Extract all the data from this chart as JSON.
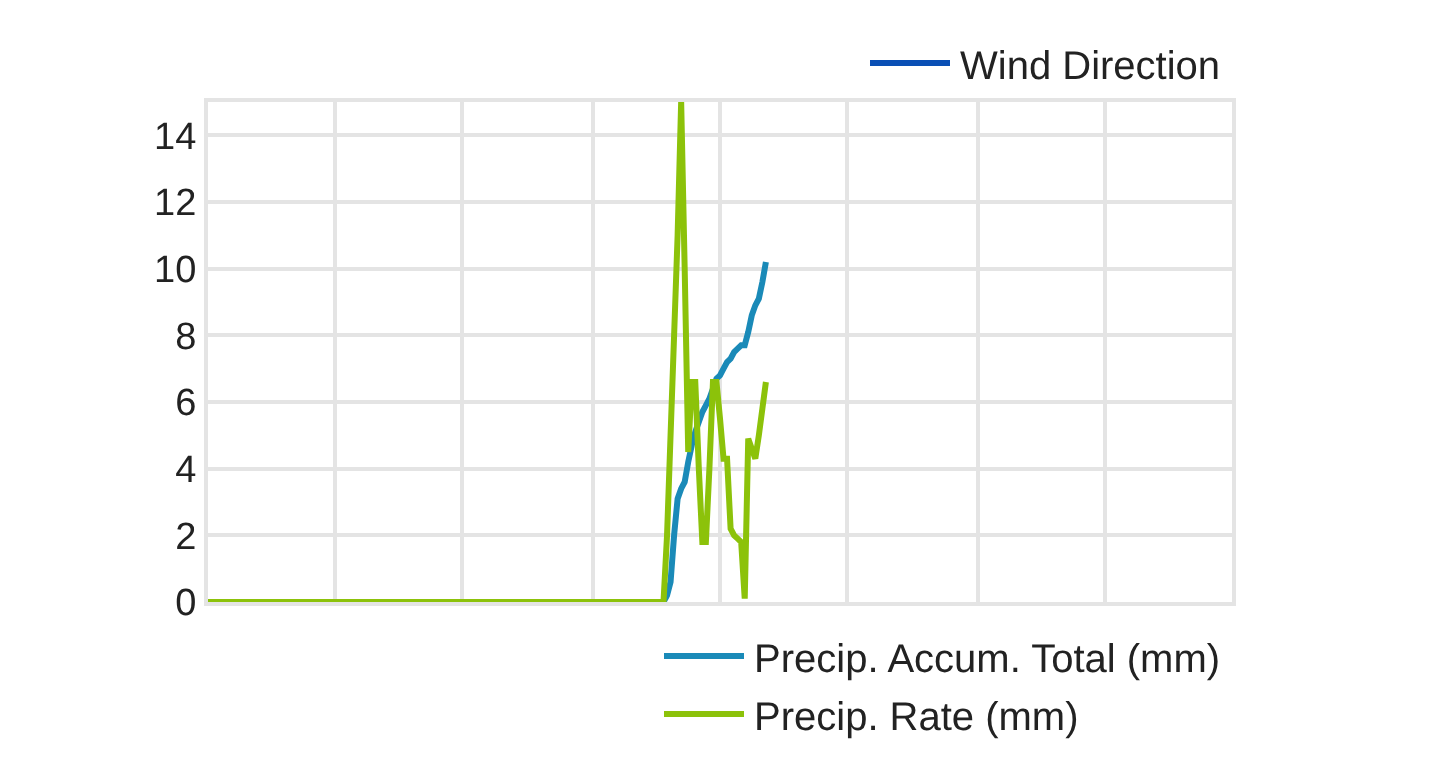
{
  "chart_data": {
    "type": "line",
    "categories": [
      null,
      null,
      null,
      null,
      null,
      null,
      null,
      null,
      null,
      null,
      null,
      null,
      null,
      null,
      null,
      null,
      null,
      null,
      null,
      null,
      null,
      null,
      null,
      null,
      null,
      null,
      null,
      null,
      null,
      null,
      null,
      null,
      null,
      null,
      null,
      null,
      null,
      null,
      null,
      null,
      null,
      null,
      null,
      null,
      null,
      null,
      null,
      null,
      null,
      null,
      null,
      null,
      null,
      null,
      null,
      null,
      null,
      null,
      null,
      null,
      null,
      null,
      null,
      null,
      null,
      null,
      null,
      null,
      null,
      null,
      null,
      null,
      null,
      null,
      null,
      null,
      null,
      null,
      null,
      null,
      null,
      null,
      null,
      null,
      null,
      null,
      null,
      null,
      null,
      null,
      null,
      null,
      null,
      null,
      null,
      null,
      null,
      null,
      null,
      null,
      null,
      null,
      null,
      null,
      null,
      null,
      null,
      null,
      null,
      null,
      null,
      null,
      null,
      null,
      null,
      null,
      null,
      null,
      null,
      null,
      null,
      null,
      null,
      null,
      null,
      null,
      null,
      null,
      null,
      null,
      null,
      null,
      null,
      null,
      null,
      null,
      null,
      null,
      null,
      null,
      null,
      null,
      null,
      null,
      null,
      null,
      null,
      null,
      null,
      null,
      null,
      null,
      null,
      null,
      null,
      null,
      null,
      null,
      null,
      null,
      null,
      null,
      null,
      null,
      null,
      null,
      null,
      null,
      null,
      null,
      null,
      null,
      null,
      null,
      null,
      null,
      null,
      null,
      null,
      null,
      null,
      null,
      null,
      null,
      null,
      null,
      null,
      null,
      null,
      null,
      null,
      null,
      null,
      null,
      null,
      null,
      null,
      null,
      null,
      null,
      null,
      null,
      null,
      null,
      null,
      null,
      null,
      null,
      null,
      null,
      null,
      null,
      null,
      null,
      null,
      null,
      null,
      null,
      null,
      null,
      null,
      null,
      null,
      null,
      null,
      null,
      null,
      null,
      null,
      null,
      null,
      null,
      null,
      null,
      null,
      null,
      null,
      null,
      null,
      null,
      null,
      null,
      null,
      null,
      null,
      null,
      null,
      null,
      null,
      null,
      null,
      null,
      null,
      null,
      null,
      null,
      null,
      null,
      null,
      null,
      null,
      null,
      null,
      null,
      null,
      null,
      null,
      null,
      null,
      null,
      null,
      null,
      null,
      null,
      null,
      null,
      null,
      null,
      null,
      null,
      null,
      null,
      null,
      null,
      null,
      null,
      null,
      null,
      null,
      null,
      null
    ],
    "series": [
      {
        "name": "Wind Direction",
        "color": "#0a4fb5",
        "values": [
          null,
          null,
          null,
          null,
          null,
          null,
          null,
          null,
          null,
          null,
          null,
          null,
          null,
          null,
          null,
          null,
          null,
          null,
          null,
          null,
          null,
          null,
          null,
          null,
          null,
          null,
          null,
          null,
          null,
          null,
          null,
          null,
          null,
          null,
          null,
          null,
          null,
          null,
          null,
          null,
          null,
          null,
          null,
          null,
          null,
          null,
          null,
          null,
          null,
          null,
          null,
          null,
          null,
          null,
          null,
          null,
          null,
          null,
          null,
          null,
          null,
          null,
          null,
          null,
          null,
          null,
          null,
          null,
          null,
          null,
          null,
          null,
          null,
          null,
          null,
          null,
          null,
          null,
          null,
          null,
          null,
          null,
          null,
          null,
          null,
          null,
          null,
          null,
          null,
          null,
          null,
          null,
          null,
          null,
          null,
          null,
          null,
          null,
          null,
          null,
          null,
          null,
          null,
          null,
          null,
          null,
          null,
          null,
          null,
          null,
          null,
          null,
          null,
          null,
          null,
          null,
          null,
          null,
          null,
          null,
          null,
          null,
          null,
          null,
          null,
          null,
          null,
          null,
          null,
          null,
          null,
          null,
          null,
          null,
          null,
          null,
          null,
          null,
          null,
          null,
          null,
          null,
          null,
          null,
          null,
          null,
          null,
          null,
          null,
          null,
          null,
          null,
          null,
          null,
          null,
          null,
          null,
          null,
          null,
          null,
          null,
          null,
          null,
          null,
          null,
          null,
          null,
          null,
          null,
          null,
          null,
          null,
          null,
          null,
          null,
          null,
          null,
          null,
          null,
          null,
          null,
          null,
          null,
          null,
          null,
          null,
          null,
          null,
          null,
          null,
          null,
          null,
          null,
          null,
          null,
          null,
          null,
          null,
          null,
          null,
          null,
          null,
          null,
          null,
          null,
          null,
          null,
          null,
          null,
          null,
          null,
          null,
          null,
          null,
          null,
          null,
          null,
          null,
          null,
          null,
          null,
          null,
          null,
          null,
          null,
          null,
          null,
          null,
          null,
          null,
          null,
          null,
          null,
          null,
          null,
          null,
          null,
          null,
          null,
          null,
          null,
          null,
          null,
          null,
          null,
          null,
          null,
          null,
          null,
          null,
          null,
          null,
          null,
          null,
          null,
          null,
          null,
          null,
          null,
          null,
          null,
          null,
          null,
          null,
          null,
          null,
          null,
          null,
          null,
          null,
          null,
          null,
          null,
          null,
          null,
          null,
          null,
          null,
          null,
          null,
          null,
          null,
          null,
          null,
          null,
          null,
          null,
          null,
          null,
          null,
          null
        ]
      },
      {
        "name": "Precip. Accum. Total (mm)",
        "color": "#1a8ab8",
        "values": [
          null,
          null,
          null,
          null,
          null,
          null,
          null,
          null,
          null,
          null,
          null,
          null,
          null,
          null,
          null,
          null,
          null,
          null,
          null,
          null,
          null,
          null,
          null,
          null,
          null,
          null,
          null,
          null,
          null,
          null,
          null,
          null,
          null,
          null,
          null,
          null,
          null,
          null,
          null,
          null,
          null,
          null,
          null,
          null,
          null,
          null,
          null,
          null,
          null,
          null,
          null,
          null,
          null,
          null,
          null,
          null,
          null,
          null,
          null,
          null,
          null,
          null,
          null,
          null,
          null,
          null,
          null,
          null,
          null,
          null,
          null,
          null,
          null,
          null,
          null,
          null,
          null,
          null,
          null,
          null,
          null,
          null,
          null,
          null,
          null,
          null,
          null,
          null,
          null,
          null,
          null,
          null,
          null,
          null,
          null,
          null,
          null,
          null,
          null,
          null,
          null,
          null,
          null,
          null,
          null,
          null,
          null,
          null,
          null,
          null,
          null,
          null,
          null,
          null,
          null,
          null,
          null,
          null,
          null,
          null,
          null,
          null,
          null,
          null,
          null,
          null,
          null,
          null,
          null,
          0,
          0.2,
          0.6,
          2.0,
          3.1,
          3.4,
          3.6,
          4.2,
          4.7,
          5.1,
          5.4,
          5.7,
          5.9,
          6.1,
          6.4,
          6.7,
          6.8,
          7.0,
          7.2,
          7.3,
          7.5,
          7.6,
          7.7,
          7.7,
          8.1,
          8.6,
          8.9,
          9.1,
          9.6,
          10.2,
          null,
          null,
          null,
          null,
          null,
          null,
          null,
          null,
          null,
          null,
          null,
          null,
          null,
          null,
          null,
          null,
          null,
          null,
          null,
          null,
          null,
          null,
          null,
          null,
          null,
          null,
          null,
          null,
          null,
          null,
          null,
          null,
          null,
          null,
          null,
          null,
          null,
          null,
          null,
          null,
          null,
          null,
          null,
          null,
          null,
          null,
          null,
          null,
          null,
          null,
          null,
          null,
          null,
          null,
          null,
          null,
          null,
          null,
          null,
          null,
          null,
          null,
          null,
          null,
          null,
          null,
          null,
          null,
          null,
          null,
          null,
          null,
          null,
          null,
          null,
          null,
          null,
          null,
          null,
          null,
          null,
          null,
          null,
          null,
          null,
          null,
          null,
          null,
          null,
          null,
          null,
          null,
          null,
          null,
          null,
          null,
          null,
          null,
          null,
          null,
          null,
          null,
          null,
          null,
          null,
          null,
          null,
          null,
          null,
          null,
          null,
          null,
          null,
          null,
          null,
          null,
          null,
          null,
          null,
          null,
          null,
          null,
          null,
          null,
          null,
          null,
          null,
          null,
          null,
          null,
          null,
          null
        ]
      },
      {
        "name": "Precip. Rate (mm)",
        "color": "#8cc20a",
        "values": [
          0,
          0,
          0,
          0,
          0,
          0,
          0,
          0,
          0,
          0,
          0,
          0,
          0,
          0,
          0,
          0,
          0,
          0,
          0,
          0,
          0,
          0,
          0,
          0,
          0,
          0,
          0,
          0,
          0,
          0,
          0,
          0,
          0,
          0,
          0,
          0,
          0,
          0,
          0,
          0,
          0,
          0,
          0,
          0,
          0,
          0,
          0,
          0,
          0,
          0,
          0,
          0,
          0,
          0,
          0,
          0,
          0,
          0,
          0,
          0,
          0,
          0,
          0,
          0,
          0,
          0,
          0,
          0,
          0,
          0,
          0,
          0,
          0,
          0,
          0,
          0,
          0,
          0,
          0,
          0,
          0,
          0,
          0,
          0,
          0,
          0,
          0,
          0,
          0,
          0,
          0,
          0,
          0,
          0,
          0,
          0,
          0,
          0,
          0,
          0,
          0,
          0,
          0,
          0,
          0,
          0,
          0,
          0,
          0,
          0,
          0,
          0,
          0,
          0,
          0,
          0,
          0,
          0,
          0,
          0,
          0,
          0,
          0,
          0,
          0,
          0,
          0,
          0,
          0,
          0,
          2,
          5,
          8,
          11,
          15,
          10,
          4.5,
          6.6,
          6.6,
          4,
          1.8,
          1.8,
          4,
          6.6,
          6.6,
          5.5,
          4.3,
          4.3,
          2.2,
          2.0,
          1.9,
          1.8,
          0.1,
          4.9,
          4.6,
          4.3,
          5.0,
          5.8,
          6.6,
          null,
          null,
          null,
          null,
          null,
          null,
          null,
          null,
          null,
          null,
          null,
          null,
          null,
          null,
          null,
          null,
          null,
          null,
          null,
          null,
          null,
          null,
          null,
          null,
          null,
          null,
          null,
          null,
          null,
          null,
          null,
          null,
          null,
          null,
          null,
          null,
          null,
          null,
          null,
          null,
          null,
          null,
          null,
          null,
          null,
          null,
          null,
          null,
          null,
          null,
          null,
          null,
          null,
          null,
          null,
          null,
          null,
          null,
          null,
          null,
          null,
          null,
          null,
          null,
          null,
          null,
          null,
          null,
          null,
          null,
          null,
          null,
          null,
          null,
          null,
          null,
          null,
          null,
          null,
          null,
          null,
          null,
          null,
          null,
          null,
          null,
          null,
          null,
          null,
          null,
          null,
          null,
          null,
          null,
          null,
          null,
          null,
          null,
          null,
          null,
          null,
          null,
          null,
          null,
          null,
          null,
          null,
          null,
          null,
          null,
          null,
          null,
          null,
          null,
          null,
          null,
          null,
          null,
          null,
          null,
          null,
          null,
          null,
          null,
          null,
          null,
          null,
          null,
          null,
          null,
          null,
          null
        ]
      }
    ],
    "ylim": [
      0,
      15
    ],
    "yticks": [
      0,
      2,
      4,
      6,
      8,
      10,
      12,
      14
    ],
    "grid": true,
    "legend": "bottom right"
  }
}
